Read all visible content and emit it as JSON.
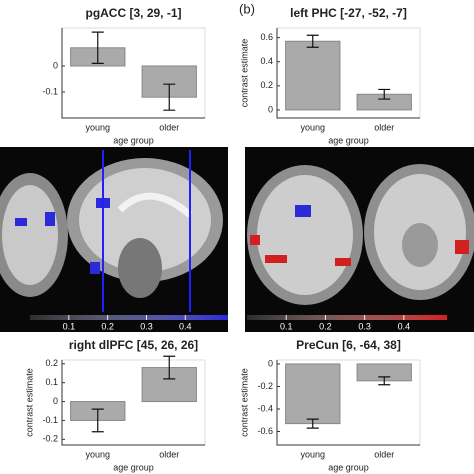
{
  "panel_label": "(b)",
  "chart_data": [
    {
      "type": "bar",
      "title": "pgACC [3, 29, -1]",
      "xlabel": "age group",
      "categories": [
        "young",
        "older"
      ],
      "values": [
        0.07,
        -0.12
      ],
      "errors": [
        0.06,
        0.05
      ],
      "color": "#aaaaaa",
      "ylim": [
        -0.2,
        0.146
      ],
      "yticks": [
        -0.1,
        0
      ]
    },
    {
      "type": "bar",
      "title": "left PHC [-27, -52, -7]",
      "xlabel": "age group",
      "ylabel": "contrast estimate",
      "categories": [
        "young",
        "older"
      ],
      "values": [
        0.57,
        0.13
      ],
      "errors": [
        0.05,
        0.04
      ],
      "color": "#aaaaaa",
      "ylim": [
        -0.067,
        0.68
      ],
      "yticks": [
        0,
        0.2,
        0.4,
        0.6
      ]
    },
    {
      "type": "bar",
      "title": "right dlPFC [45, 26, 26]",
      "xlabel": "age group",
      "ylabel": "contrast estimate",
      "categories": [
        "young",
        "older"
      ],
      "values": [
        -0.1,
        0.18
      ],
      "errors": [
        0.06,
        0.06
      ],
      "color": "#aaaaaa",
      "ylim": [
        -0.23,
        0.22
      ],
      "yticks": [
        -0.2,
        -0.1,
        0,
        0.1,
        0.2
      ]
    },
    {
      "type": "bar",
      "title": "PreCun [6, -64, 38]",
      "xlabel": "age group",
      "ylabel": "contrast estimate",
      "categories": [
        "young",
        "older"
      ],
      "values": [
        -0.53,
        -0.15
      ],
      "errors": [
        0.04,
        0.035
      ],
      "color": "#aaaaaa",
      "ylim": [
        -0.72,
        0.035
      ],
      "yticks": [
        -0.6,
        -0.4,
        -0.2,
        0
      ]
    }
  ],
  "colorbars": [
    {
      "color": "#2a2ad8",
      "lim": [
        0,
        0.51
      ],
      "ticks": [
        0.1,
        0.2,
        0.3,
        0.4
      ]
    },
    {
      "color": "#d02020",
      "lim": [
        0,
        0.51
      ],
      "ticks": [
        0.1,
        0.2,
        0.3,
        0.4
      ]
    }
  ]
}
